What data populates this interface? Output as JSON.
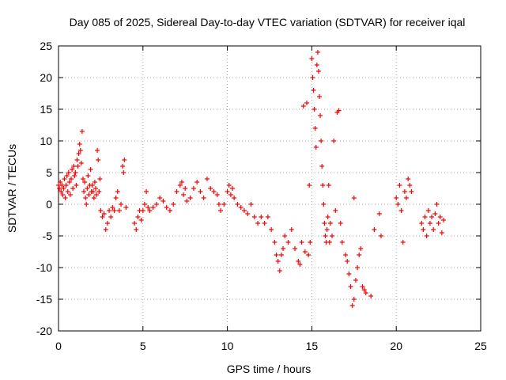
{
  "chart_data": {
    "type": "scatter",
    "title": "Day 085 of 2025, Sidereal Day-to-day VTEC variation (SDTVAR) for receiver iqal",
    "xlabel": "GPS time / hours",
    "ylabel": "SDTVAR / TECUs",
    "xlim": [
      0,
      25
    ],
    "ylim": [
      -20,
      25
    ],
    "xticks": [
      0,
      5,
      10,
      15,
      20,
      25
    ],
    "yticks": [
      -20,
      -15,
      -10,
      -5,
      0,
      5,
      10,
      15,
      20,
      25
    ],
    "grid": true,
    "marker": "plus",
    "color": "#ff0000",
    "series": [
      {
        "name": "SDTVAR",
        "points": [
          [
            0.0,
            3
          ],
          [
            0.05,
            2.5
          ],
          [
            0.1,
            3.5
          ],
          [
            0.15,
            2
          ],
          [
            0.2,
            3
          ],
          [
            0.25,
            1.5
          ],
          [
            0.3,
            2.5
          ],
          [
            0.35,
            4
          ],
          [
            0.4,
            1
          ],
          [
            0.45,
            3
          ],
          [
            0.5,
            4.5
          ],
          [
            0.55,
            2
          ],
          [
            0.6,
            5
          ],
          [
            0.65,
            3.5
          ],
          [
            0.7,
            1.5
          ],
          [
            0.75,
            4
          ],
          [
            0.8,
            5.5
          ],
          [
            0.85,
            2.5
          ],
          [
            0.9,
            6
          ],
          [
            0.95,
            4.5
          ],
          [
            1.0,
            5
          ],
          [
            1.05,
            3
          ],
          [
            1.1,
            7
          ],
          [
            1.15,
            6
          ],
          [
            1.2,
            8
          ],
          [
            1.25,
            9.5
          ],
          [
            1.3,
            8.5
          ],
          [
            1.35,
            6.5
          ],
          [
            1.4,
            11.5
          ],
          [
            1.45,
            4
          ],
          [
            1.5,
            2
          ],
          [
            1.55,
            3.5
          ],
          [
            1.6,
            1
          ],
          [
            1.65,
            0
          ],
          [
            1.7,
            2.5
          ],
          [
            1.75,
            4.5
          ],
          [
            1.8,
            1.5
          ],
          [
            1.85,
            3
          ],
          [
            1.9,
            5.5
          ],
          [
            1.95,
            2
          ],
          [
            2.0,
            3
          ],
          [
            2.05,
            2
          ],
          [
            2.1,
            1
          ],
          [
            2.15,
            3.5
          ],
          [
            2.2,
            2.5
          ],
          [
            2.25,
            1.5
          ],
          [
            2.3,
            8.5
          ],
          [
            2.35,
            7
          ],
          [
            2.4,
            2
          ],
          [
            2.45,
            4
          ],
          [
            2.5,
            -1
          ],
          [
            2.6,
            -2
          ],
          [
            2.7,
            -1.5
          ],
          [
            2.8,
            -4
          ],
          [
            2.9,
            -3
          ],
          [
            3.0,
            -1
          ],
          [
            3.1,
            -2
          ],
          [
            3.2,
            -0.5
          ],
          [
            3.3,
            -1
          ],
          [
            3.4,
            1
          ],
          [
            3.5,
            2
          ],
          [
            3.6,
            -1
          ],
          [
            3.7,
            0
          ],
          [
            3.8,
            6
          ],
          [
            3.85,
            5
          ],
          [
            3.9,
            7
          ],
          [
            4.0,
            -0.5
          ],
          [
            4.5,
            -3
          ],
          [
            4.6,
            -4
          ],
          [
            4.7,
            -2
          ],
          [
            4.8,
            -1
          ],
          [
            4.9,
            -2.5
          ],
          [
            5.0,
            -1
          ],
          [
            5.1,
            0
          ],
          [
            5.2,
            2
          ],
          [
            5.3,
            -0.5
          ],
          [
            5.4,
            -1
          ],
          [
            5.6,
            -0.5
          ],
          [
            5.8,
            0
          ],
          [
            6.0,
            1
          ],
          [
            6.2,
            0.5
          ],
          [
            6.4,
            -0.5
          ],
          [
            6.6,
            -1
          ],
          [
            6.8,
            0
          ],
          [
            7.0,
            2
          ],
          [
            7.2,
            3
          ],
          [
            7.3,
            3.5
          ],
          [
            7.4,
            1.5
          ],
          [
            7.5,
            2.5
          ],
          [
            7.6,
            0.5
          ],
          [
            7.8,
            1
          ],
          [
            8.0,
            2.5
          ],
          [
            8.2,
            3.5
          ],
          [
            8.4,
            2
          ],
          [
            8.6,
            1
          ],
          [
            8.8,
            4
          ],
          [
            9.0,
            2.5
          ],
          [
            9.2,
            2
          ],
          [
            9.4,
            1.5
          ],
          [
            9.5,
            0
          ],
          [
            9.6,
            -1
          ],
          [
            9.8,
            0
          ],
          [
            10.0,
            2
          ],
          [
            10.1,
            3
          ],
          [
            10.2,
            1.5
          ],
          [
            10.3,
            2.5
          ],
          [
            10.4,
            1
          ],
          [
            10.6,
            0
          ],
          [
            10.8,
            -0.5
          ],
          [
            11.0,
            -1
          ],
          [
            11.2,
            -1.5
          ],
          [
            11.4,
            0
          ],
          [
            11.6,
            -2
          ],
          [
            11.8,
            -3
          ],
          [
            12.0,
            -2
          ],
          [
            12.2,
            -3
          ],
          [
            12.4,
            -2
          ],
          [
            12.6,
            -4
          ],
          [
            12.8,
            -6
          ],
          [
            12.9,
            -8
          ],
          [
            13.0,
            -9
          ],
          [
            13.1,
            -10.5
          ],
          [
            13.2,
            -8
          ],
          [
            13.3,
            -7
          ],
          [
            13.4,
            -5
          ],
          [
            13.6,
            -6
          ],
          [
            13.8,
            -4
          ],
          [
            14.0,
            -7
          ],
          [
            14.2,
            -9
          ],
          [
            14.3,
            -9.5
          ],
          [
            14.4,
            -6
          ],
          [
            14.6,
            -7.5
          ],
          [
            14.8,
            -8
          ],
          [
            14.9,
            -6
          ],
          [
            14.5,
            15.5
          ],
          [
            14.7,
            16
          ],
          [
            14.85,
            3
          ],
          [
            15.0,
            23
          ],
          [
            15.05,
            20
          ],
          [
            15.1,
            18
          ],
          [
            15.15,
            15
          ],
          [
            15.2,
            12
          ],
          [
            15.25,
            9
          ],
          [
            15.3,
            22
          ],
          [
            15.35,
            24
          ],
          [
            15.4,
            21
          ],
          [
            15.45,
            17
          ],
          [
            15.5,
            14
          ],
          [
            15.55,
            10
          ],
          [
            15.6,
            6
          ],
          [
            15.65,
            3
          ],
          [
            15.7,
            0
          ],
          [
            15.75,
            -3
          ],
          [
            15.8,
            -5
          ],
          [
            15.85,
            -6
          ],
          [
            15.9,
            -4
          ],
          [
            15.95,
            -2
          ],
          [
            16.0,
            3
          ],
          [
            16.05,
            -6
          ],
          [
            16.1,
            -3
          ],
          [
            16.2,
            -5
          ],
          [
            16.3,
            10
          ],
          [
            16.4,
            -1
          ],
          [
            16.5,
            14.5
          ],
          [
            16.6,
            14.8
          ],
          [
            16.7,
            -3
          ],
          [
            16.8,
            -6
          ],
          [
            17.0,
            -8
          ],
          [
            17.1,
            -9
          ],
          [
            17.2,
            -11
          ],
          [
            17.3,
            -13
          ],
          [
            17.4,
            -16
          ],
          [
            17.5,
            -15
          ],
          [
            17.6,
            -12
          ],
          [
            17.7,
            -10
          ],
          [
            17.8,
            -8
          ],
          [
            17.9,
            -7
          ],
          [
            17.5,
            1
          ],
          [
            18.0,
            -13
          ],
          [
            18.1,
            -13.5
          ],
          [
            18.2,
            -14
          ],
          [
            18.5,
            -14.5
          ],
          [
            18.7,
            -4
          ],
          [
            19.0,
            -1.5
          ],
          [
            19.1,
            -5
          ],
          [
            20.0,
            1
          ],
          [
            20.1,
            0
          ],
          [
            20.2,
            3
          ],
          [
            20.3,
            -1
          ],
          [
            20.4,
            -6
          ],
          [
            20.5,
            2
          ],
          [
            20.6,
            1
          ],
          [
            20.7,
            4
          ],
          [
            20.8,
            3
          ],
          [
            20.9,
            2
          ],
          [
            21.5,
            -3
          ],
          [
            21.6,
            -4
          ],
          [
            21.7,
            -2
          ],
          [
            21.8,
            -5
          ],
          [
            21.9,
            -1
          ],
          [
            22.0,
            -3
          ],
          [
            22.1,
            -2
          ],
          [
            22.2,
            -4
          ],
          [
            22.3,
            -1.5
          ],
          [
            22.4,
            0
          ],
          [
            22.5,
            -3
          ],
          [
            22.6,
            -2
          ],
          [
            22.7,
            -4.5
          ],
          [
            22.8,
            -2.5
          ]
        ]
      }
    ]
  }
}
